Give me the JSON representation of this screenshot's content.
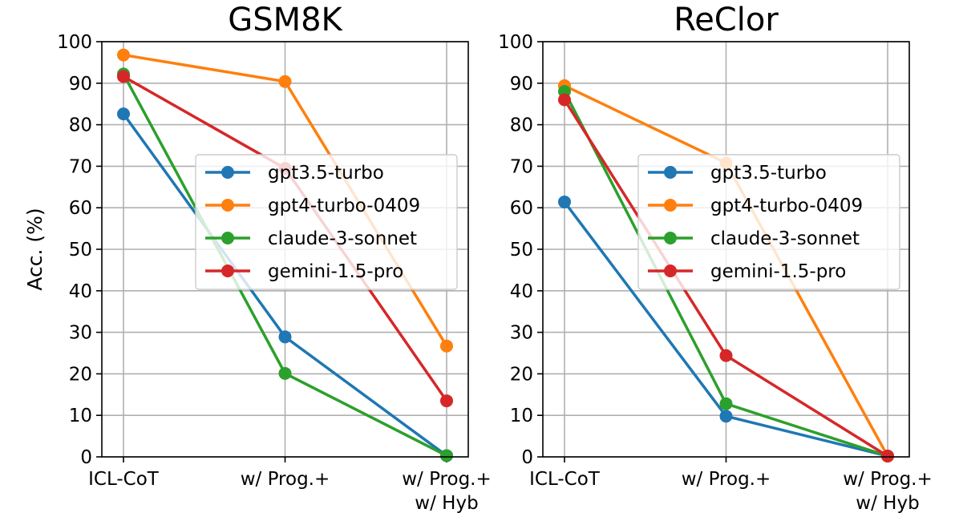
{
  "ylabel": "Acc. (%)",
  "chart_data": [
    {
      "type": "line",
      "title": "GSM8K",
      "categories": [
        "ICL-CoT",
        "w/ Prog.+",
        "w/ Prog.+\nw/ Hyb"
      ],
      "ylim": [
        0,
        100
      ],
      "yticks": [
        0,
        10,
        20,
        30,
        40,
        50,
        60,
        70,
        80,
        90,
        100
      ],
      "grid": true,
      "legend_position": "center-right",
      "series": [
        {
          "name": "gpt3.5-turbo",
          "color": "#1f77b4",
          "values": [
            82.6,
            28.9,
            0.3
          ]
        },
        {
          "name": "gpt4-turbo-0409",
          "color": "#ff7f0e",
          "values": [
            96.8,
            90.4,
            26.7
          ]
        },
        {
          "name": "claude-3-sonnet",
          "color": "#2ca02c",
          "values": [
            92.2,
            20.1,
            0.3
          ]
        },
        {
          "name": "gemini-1.5-pro",
          "color": "#d62728",
          "values": [
            91.6,
            69.5,
            13.5
          ]
        }
      ]
    },
    {
      "type": "line",
      "title": "ReClor",
      "categories": [
        "ICL-CoT",
        "w/ Prog.+",
        "w/ Prog.+\nw/ Hyb"
      ],
      "ylim": [
        0,
        100
      ],
      "yticks": [
        0,
        10,
        20,
        30,
        40,
        50,
        60,
        70,
        80,
        90,
        100
      ],
      "grid": true,
      "legend_position": "center-right",
      "series": [
        {
          "name": "gpt3.5-turbo",
          "color": "#1f77b4",
          "values": [
            61.4,
            9.8,
            0.2
          ]
        },
        {
          "name": "gpt4-turbo-0409",
          "color": "#ff7f0e",
          "values": [
            89.4,
            70.8,
            0.2
          ]
        },
        {
          "name": "claude-3-sonnet",
          "color": "#2ca02c",
          "values": [
            88.0,
            12.8,
            0.2
          ]
        },
        {
          "name": "gemini-1.5-pro",
          "color": "#d62728",
          "values": [
            86.0,
            24.4,
            0.2
          ]
        }
      ]
    }
  ]
}
